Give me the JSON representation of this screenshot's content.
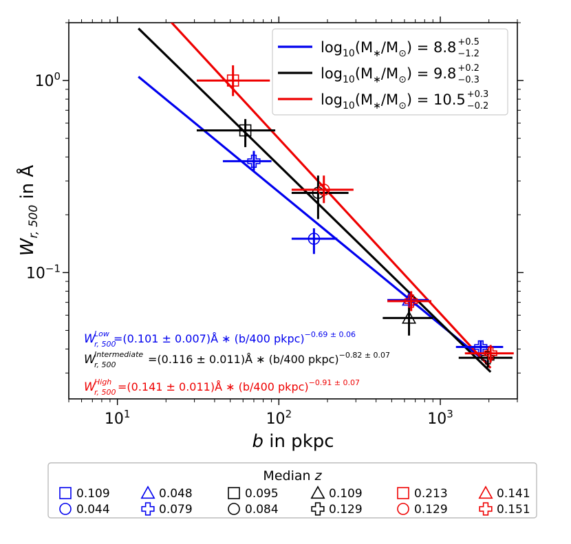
{
  "chart_data": {
    "type": "scatter",
    "xscale": "log",
    "yscale": "log",
    "xlim": [
      5,
      3000
    ],
    "ylim": [
      0.022,
      2.0
    ],
    "xlabel_italic": "b",
    "xlabel_rest": " in pkpc",
    "ylabel_italic": "W",
    "ylabel_sub": "r, 500",
    "ylabel_rest": " in Å",
    "xticks": [
      {
        "value": 10,
        "base": "10",
        "exp": "1"
      },
      {
        "value": 100,
        "base": "10",
        "exp": "2"
      },
      {
        "value": 1000,
        "base": "10",
        "exp": "3"
      }
    ],
    "yticks": [
      {
        "value": 0.1,
        "base": "10",
        "exp": "−1"
      },
      {
        "value": 1,
        "base": "10",
        "exp": "0"
      }
    ],
    "series": [
      {
        "name": "Low",
        "color": "#0000ee",
        "legend": {
          "prefix": "log",
          "sub": "10",
          "mid": "(M",
          "star": "∗",
          "sep": "/M",
          "sun": "⊙",
          "close": ") = ",
          "value": "8.8",
          "up": "+0.5",
          "down": "−1.2"
        },
        "fit": {
          "sup": "Low",
          "text": "=(0.101 ± 0.007)Å ∗ (b/400 pkpc)",
          "exp": "−0.69 ± 0.06",
          "amp": 0.101,
          "slope": -0.69,
          "xrange": [
            13.5,
            1950
          ]
        },
        "points": [
          {
            "x": 70,
            "y": 0.38,
            "xerr": [
              45,
              90
            ],
            "yerr": [
              0.34,
              0.43
            ],
            "marker": "plus"
          },
          {
            "x": 165,
            "y": 0.15,
            "xerr": [
              120,
              230
            ],
            "yerr": [
              0.125,
              0.17
            ],
            "marker": "circle"
          },
          {
            "x": 640,
            "y": 0.072,
            "xerr": [
              470,
              850
            ],
            "yerr": [
              0.066,
              0.078
            ],
            "marker": "triangle"
          },
          {
            "x": 1780,
            "y": 0.041,
            "xerr": [
              1250,
              2450
            ],
            "yerr": [
              0.037,
              0.044
            ],
            "marker": "plus"
          }
        ]
      },
      {
        "name": "Intermediate",
        "color": "#000000",
        "legend": {
          "prefix": "log",
          "sub": "10",
          "mid": "(M",
          "star": "∗",
          "sep": "/M",
          "sun": "⊙",
          "close": ") = ",
          "value": "9.8",
          "up": "+0.2",
          "down": "−0.3"
        },
        "fit": {
          "sup": "Intermediate",
          "text": "=(0.116 ± 0.011)Å ∗ (b/400 pkpc)",
          "exp": "−0.82 ± 0.07",
          "amp": 0.116,
          "slope": -0.82,
          "xrange": [
            13.5,
            2050
          ]
        },
        "points": [
          {
            "x": 62,
            "y": 0.55,
            "xerr": [
              31,
              95
            ],
            "yerr": [
              0.45,
              0.63
            ],
            "marker": "square"
          },
          {
            "x": 175,
            "y": 0.26,
            "xerr": [
              120,
              270
            ],
            "yerr": [
              0.19,
              0.32
            ],
            "marker": "circle"
          },
          {
            "x": 640,
            "y": 0.058,
            "xerr": [
              440,
              900
            ],
            "yerr": [
              0.047,
              0.066
            ],
            "marker": "triangle"
          },
          {
            "x": 1970,
            "y": 0.036,
            "xerr": [
              1300,
              2800
            ],
            "yerr": [
              0.032,
              0.04
            ],
            "marker": "plus"
          }
        ]
      },
      {
        "name": "High",
        "color": "#ee0000",
        "legend": {
          "prefix": "log",
          "sub": "10",
          "mid": "(M",
          "star": "∗",
          "sep": "/M",
          "sun": "⊙",
          "close": ") = ",
          "value": "10.5",
          "up": "+0.3",
          "down": "−0.2"
        },
        "fit": {
          "sup": "High",
          "text": "=(0.141 ± 0.011)Å ∗ (b/400 pkpc)",
          "exp": "−0.91 ± 0.07",
          "amp": 0.141,
          "slope": -0.91,
          "xrange": [
            21,
            2050
          ]
        },
        "points": [
          {
            "x": 52,
            "y": 1.0,
            "xerr": [
              31,
              88
            ],
            "yerr": [
              0.83,
              1.2
            ],
            "marker": "square"
          },
          {
            "x": 190,
            "y": 0.27,
            "xerr": [
              120,
              290
            ],
            "yerr": [
              0.23,
              0.32
            ],
            "marker": "circle"
          },
          {
            "x": 660,
            "y": 0.071,
            "xerr": [
              470,
              880
            ],
            "yerr": [
              0.063,
              0.08
            ],
            "marker": "plus"
          },
          {
            "x": 2050,
            "y": 0.038,
            "xerr": [
              1420,
              2850
            ],
            "yerr": [
              0.034,
              0.042
            ],
            "marker": "plus"
          }
        ]
      }
    ]
  },
  "median_z_legend": {
    "title_text": "Median ",
    "title_var": "z",
    "entries": [
      {
        "marker": "square",
        "color": "#0000ee",
        "value": "0.109"
      },
      {
        "marker": "triangle",
        "color": "#0000ee",
        "value": "0.048"
      },
      {
        "marker": "square",
        "color": "#000000",
        "value": "0.095"
      },
      {
        "marker": "triangle",
        "color": "#000000",
        "value": "0.109"
      },
      {
        "marker": "square",
        "color": "#ee0000",
        "value": "0.213"
      },
      {
        "marker": "triangle",
        "color": "#ee0000",
        "value": "0.141"
      },
      {
        "marker": "circle",
        "color": "#0000ee",
        "value": "0.044"
      },
      {
        "marker": "plus",
        "color": "#0000ee",
        "value": "0.079"
      },
      {
        "marker": "circle",
        "color": "#000000",
        "value": "0.084"
      },
      {
        "marker": "plus",
        "color": "#000000",
        "value": "0.129"
      },
      {
        "marker": "circle",
        "color": "#ee0000",
        "value": "0.129"
      },
      {
        "marker": "plus",
        "color": "#ee0000",
        "value": "0.151"
      }
    ]
  }
}
